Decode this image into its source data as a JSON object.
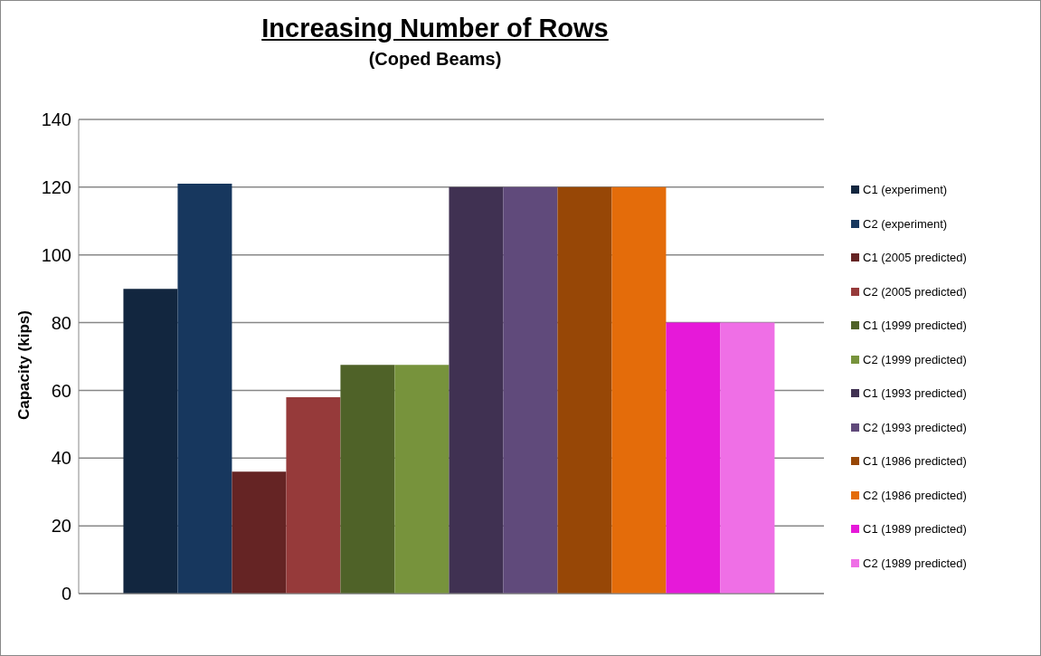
{
  "chart_data": {
    "type": "bar",
    "title": "Increasing Number of Rows",
    "subtitle": "(Coped Beams)",
    "ylabel": "Capacity (kips)",
    "categories": [
      null
    ],
    "series": [
      {
        "name": "C1 (experiment)",
        "color": "#12263f",
        "values": [
          90
        ]
      },
      {
        "name": "C2 (experiment)",
        "color": "#17375e",
        "values": [
          121
        ]
      },
      {
        "name": "C1 (2005 predicted)",
        "color": "#652424",
        "values": [
          36
        ]
      },
      {
        "name": "C2 (2005 predicted)",
        "color": "#963a3a",
        "values": [
          58
        ]
      },
      {
        "name": "C1 (1999 predicted)",
        "color": "#4f6228",
        "values": [
          67.5
        ]
      },
      {
        "name": "C2 (1999 predicted)",
        "color": "#77933c",
        "values": [
          67.5
        ]
      },
      {
        "name": "C1 (1993 predicted)",
        "color": "#403152",
        "values": [
          120
        ]
      },
      {
        "name": "C2 (1993 predicted)",
        "color": "#604a7b",
        "values": [
          120
        ]
      },
      {
        "name": "C1 (1986 predicted)",
        "color": "#974706",
        "values": [
          120
        ]
      },
      {
        "name": "C2 (1986 predicted)",
        "color": "#e46c0a",
        "values": [
          120
        ]
      },
      {
        "name": "C1 (1989 predicted)",
        "color": "#e619d9",
        "values": [
          80
        ]
      },
      {
        "name": "C2 (1989 predicted)",
        "color": "#ef6fe6",
        "values": [
          80
        ]
      }
    ],
    "ylim": [
      0,
      140
    ],
    "yticks": [
      0,
      20,
      40,
      60,
      80,
      100,
      120,
      140
    ],
    "grid": "y",
    "legend": "right"
  }
}
